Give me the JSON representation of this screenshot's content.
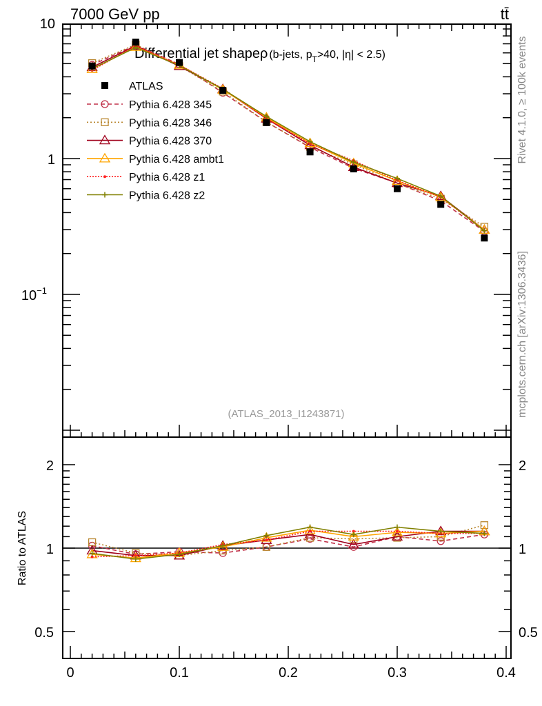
{
  "header": {
    "left": "7000 GeV pp",
    "right": "tt̄"
  },
  "side_text": {
    "top": "Rivet 4.1.0, ≥ 100k events",
    "bottom": "mcplots.cern.ch [arXiv:1306.3436]"
  },
  "chart_data": {
    "type": "line",
    "title": "Differential jet shapeρ",
    "title_sub": "(b-jets, p",
    "title_sub_T": "T",
    "title_sub_rest": ">40, |η| < 2.5)",
    "watermark": "(ATLAS_2013_I1243871)",
    "xlabel": "",
    "ylabel_ratio": "Ratio to ATLAS",
    "xlim": [
      0,
      0.4
    ],
    "ylim": [
      0.095,
      100
    ],
    "yscale": "log",
    "ratio_ylim": [
      0.4,
      2.5
    ],
    "x_ticks": [
      "0",
      "0.1",
      "0.2",
      "0.3",
      "0.4"
    ],
    "y_ticks": [
      {
        "v": 10,
        "label": "10"
      },
      {
        "v": 1,
        "label": "1"
      },
      {
        "v": 0.1,
        "label": "10",
        "sup": "−1"
      }
    ],
    "ratio_ticks": [
      {
        "v": 2,
        "label": "2"
      },
      {
        "v": 1,
        "label": "1"
      },
      {
        "v": 0.5,
        "label": "0.5"
      }
    ],
    "x": [
      0.02,
      0.06,
      0.1,
      0.14,
      0.18,
      0.22,
      0.26,
      0.3,
      0.34,
      0.38
    ],
    "data": {
      "name": "ATLAS",
      "values": [
        4.8,
        7.2,
        5.1,
        3.18,
        1.84,
        1.12,
        0.84,
        0.6,
        0.46,
        0.26
      ]
    },
    "series": [
      {
        "name": "Pythia 6.428 345",
        "color": "#c03048",
        "dash": "6,4",
        "marker": "circle",
        "ratio": [
          1.02,
          0.95,
          0.97,
          0.96,
          1.01,
          1.08,
          1.01,
          1.1,
          1.06,
          1.12
        ]
      },
      {
        "name": "Pythia 6.428 346",
        "color": "#b8862e",
        "dash": "2,3",
        "marker": "square",
        "ratio": [
          1.05,
          0.96,
          0.94,
          0.98,
          1.01,
          1.09,
          1.08,
          1.09,
          1.1,
          1.21
        ]
      },
      {
        "name": "Pythia 6.428 370",
        "color": "#a0001c",
        "dash": "",
        "marker": "triangle",
        "ratio": [
          0.98,
          0.94,
          0.94,
          1.02,
          1.07,
          1.12,
          1.03,
          1.1,
          1.15,
          1.15
        ]
      },
      {
        "name": "Pythia 6.428 ambt1",
        "color": "#ffa500",
        "dash": "",
        "marker": "triangle",
        "ratio": [
          0.95,
          0.92,
          0.96,
          1.01,
          1.09,
          1.16,
          1.1,
          1.14,
          1.13,
          1.15
        ]
      },
      {
        "name": "Pythia 6.428 z1",
        "color": "#ff2020",
        "dash": "2,2",
        "marker": "dot",
        "ratio": [
          0.93,
          0.94,
          0.96,
          1.03,
          1.07,
          1.15,
          1.15,
          1.15,
          1.13,
          1.13
        ]
      },
      {
        "name": "Pythia 6.428 z2",
        "color": "#808000",
        "dash": "",
        "marker": "plus",
        "ratio": [
          0.957,
          0.913,
          0.95,
          1.02,
          1.11,
          1.19,
          1.12,
          1.19,
          1.15,
          1.13
        ]
      }
    ]
  }
}
